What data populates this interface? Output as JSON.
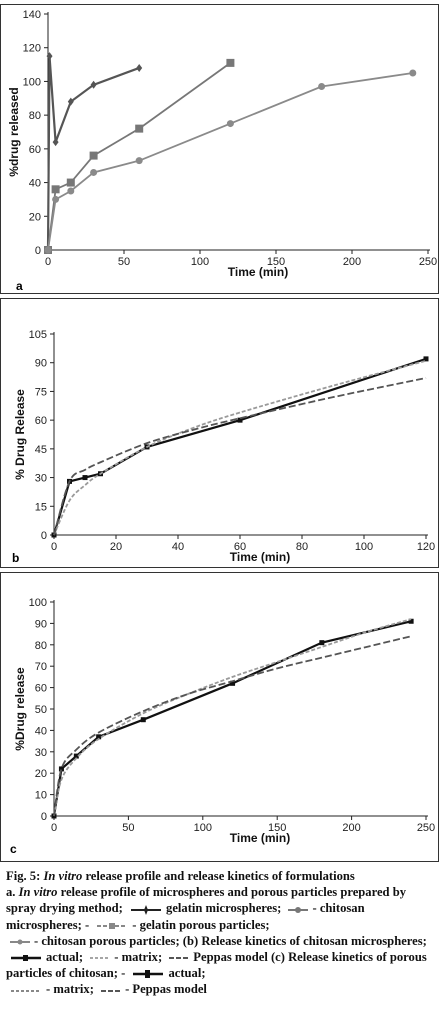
{
  "figure": {
    "caption": {
      "fig_label": "Fig. 5:",
      "fig_title_italic": "In vitro",
      "fig_title_rest": "release profile and release kinetics of formulations",
      "a_prefix": "a.",
      "a_italic": "In vitro",
      "a_text": "release profile of microspheres and porous particles prepared by spray drying method;",
      "a_l1": "gelatin microspheres;",
      "a_l2": "- chitosan microspheres;",
      "a_l3": "gelatin porous particles;",
      "a_l4": "- chitosan porous particles; (b) Release kinetics of chitosan microspheres;",
      "b_l1": "actual;",
      "b_l2": "- matrix;",
      "b_l3": "Peppas model (c) Release kinetics of porous particles of chitosan;",
      "c_l1": "actual;",
      "c_l2": "- matrix;",
      "c_l3": "- Peppas model"
    }
  },
  "chart_data": [
    {
      "type": "line",
      "panel_label": "a",
      "xlabel": "Time (min)",
      "ylabel": "%drug released",
      "xlim": [
        0,
        250
      ],
      "ylim": [
        0,
        140
      ],
      "xticks": [
        "0",
        "50",
        "100",
        "150",
        "200",
        "250"
      ],
      "yticks": [
        "0",
        "20",
        "40",
        "60",
        "80",
        "100",
        "120",
        "140"
      ],
      "grid": false,
      "series": [
        {
          "marker": "star",
          "color": "#555555",
          "x": [
            0,
            1,
            5,
            15,
            30,
            60
          ],
          "y": [
            0,
            115,
            64,
            88,
            98,
            108
          ]
        },
        {
          "marker": "square",
          "color": "#777777",
          "x": [
            0,
            5,
            15,
            30,
            60,
            120
          ],
          "y": [
            0,
            36,
            40,
            56,
            72,
            111
          ]
        },
        {
          "marker": "circle",
          "color": "#8a8a8a",
          "x": [
            0,
            5,
            15,
            30,
            60,
            120,
            180,
            240
          ],
          "y": [
            0,
            30,
            35,
            46,
            53,
            75,
            97,
            105
          ]
        }
      ]
    },
    {
      "type": "line",
      "panel_label": "b",
      "xlabel": "Time (min)",
      "ylabel": "% Drug Release",
      "xlim": [
        0,
        120
      ],
      "ylim": [
        0,
        105
      ],
      "xticks": [
        "0",
        "20",
        "40",
        "60",
        "80",
        "100",
        "120"
      ],
      "yticks": [
        "0",
        "15",
        "30",
        "45",
        "60",
        "75",
        "90",
        "105"
      ],
      "grid": false,
      "series": [
        {
          "style": "actual",
          "color": "#111111",
          "x": [
            0,
            5,
            10,
            15,
            30,
            60,
            120
          ],
          "y": [
            0,
            28,
            30,
            32,
            46,
            60,
            92
          ]
        },
        {
          "style": "matrix",
          "color": "#9a9a9a",
          "x": [
            0,
            5,
            10,
            15,
            30,
            45,
            60,
            90,
            120
          ],
          "y": [
            0,
            18,
            26,
            32,
            46,
            56,
            64,
            78,
            91
          ]
        },
        {
          "style": "peppas",
          "color": "#555555",
          "x": [
            0,
            5,
            10,
            15,
            30,
            45,
            60,
            90,
            120
          ],
          "y": [
            0,
            28,
            34,
            38,
            48,
            55,
            61,
            72,
            82
          ]
        }
      ]
    },
    {
      "type": "line",
      "panel_label": "c",
      "xlabel": "Time (min)",
      "ylabel": "%Drug release",
      "xlim": [
        0,
        250
      ],
      "ylim": [
        0,
        100
      ],
      "xticks": [
        "0",
        "50",
        "100",
        "150",
        "200",
        "250"
      ],
      "yticks": [
        "0",
        "10",
        "20",
        "30",
        "40",
        "50",
        "60",
        "70",
        "80",
        "90",
        "100"
      ],
      "grid": false,
      "series": [
        {
          "style": "actual",
          "color": "#111111",
          "x": [
            0,
            5,
            15,
            30,
            60,
            120,
            180,
            240
          ],
          "y": [
            0,
            22,
            28,
            37,
            45,
            62,
            81,
            91
          ]
        },
        {
          "style": "matrix",
          "color": "#9a9a9a",
          "x": [
            0,
            5,
            15,
            30,
            60,
            90,
            120,
            150,
            180,
            210,
            240
          ],
          "y": [
            0,
            17,
            27,
            36,
            48,
            57,
            65,
            72,
            79,
            86,
            92
          ]
        },
        {
          "style": "peppas",
          "color": "#555555",
          "x": [
            0,
            5,
            15,
            30,
            60,
            90,
            120,
            150,
            180,
            210,
            240
          ],
          "y": [
            0,
            22,
            31,
            39,
            49,
            57,
            63,
            69,
            74,
            79,
            84
          ]
        }
      ]
    }
  ]
}
